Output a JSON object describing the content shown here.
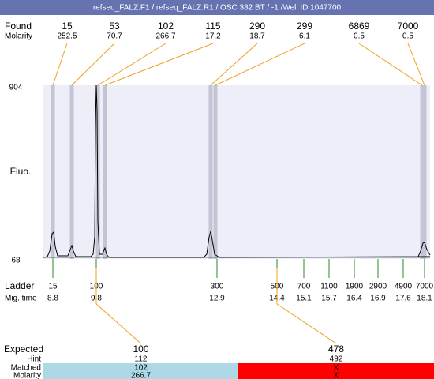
{
  "header": {
    "title": "refseq_FALZ.F1 / refseq_FALZ.R1 / OSC 382 BT / -1 /Well ID 1047700"
  },
  "found": {
    "label": "Found",
    "molarity_label": "Molarity",
    "peaks": [
      {
        "size": 15,
        "molarity": "252.5"
      },
      {
        "size": 53,
        "molarity": "70.7"
      },
      {
        "size": 102,
        "molarity": "266.7"
      },
      {
        "size": 115,
        "molarity": "17.2"
      },
      {
        "size": 290,
        "molarity": "18.7"
      },
      {
        "size": 299,
        "molarity": "6.1"
      },
      {
        "size": 6869,
        "molarity": "0.5"
      },
      {
        "size": 7000,
        "molarity": "0.5"
      }
    ]
  },
  "axis": {
    "label": "Fluo.",
    "top": 904,
    "bottom": 68
  },
  "ladder": {
    "label": "Ladder",
    "time_label": "Mig. time",
    "items": [
      {
        "size": 15,
        "time": "8.8"
      },
      {
        "size": 100,
        "time": "9.8"
      },
      {
        "size": 300,
        "time": "12.9"
      },
      {
        "size": 500,
        "time": "14.4"
      },
      {
        "size": 700,
        "time": "15.1"
      },
      {
        "size": 1100,
        "time": "15.7"
      },
      {
        "size": 1900,
        "time": "16.4"
      },
      {
        "size": 2900,
        "time": "16.9"
      },
      {
        "size": 4900,
        "time": "17.6"
      },
      {
        "size": 7000,
        "time": "18.1"
      }
    ]
  },
  "expected": {
    "label": "Expected",
    "hint_label": "Hint",
    "matched_label": "Matched",
    "molarity_label": "Molarity",
    "columns": [
      {
        "expected": 100,
        "hint": 112,
        "matched": 102,
        "molarity": "266.7"
      },
      {
        "expected": 478,
        "hint": 492,
        "matched": "X",
        "molarity": "X"
      }
    ]
  }
}
